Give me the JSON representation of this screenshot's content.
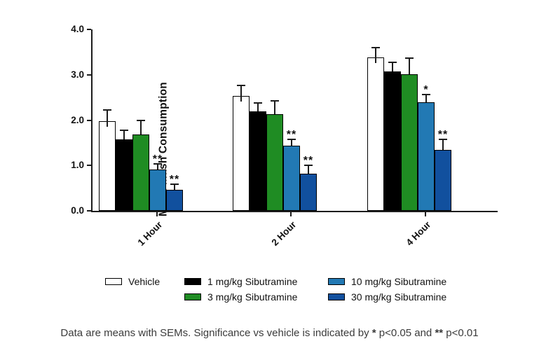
{
  "figure": {
    "caption": {
      "part1": "Data are means with SEMs. Significance vs vehicle is indicated by ",
      "star1": "*",
      "part2": " p<0.05 and ",
      "star2": "**",
      "part3": " p<0.01"
    }
  },
  "colors": {
    "axis": "#1c1c1c",
    "caption_text": "#3b3b3b",
    "vehicle": "#ffffff",
    "sibutramine_1mg": "#000000",
    "sibutramine_3mg": "#1f8c23",
    "sibutramine_10mg": "#2279b4",
    "sibutramine_30mg": "#11509e"
  },
  "chart_data": {
    "type": "bar",
    "title": "",
    "xlabel": "",
    "ylabel": "Mean Mash Consumption",
    "ylim": [
      0,
      4.0
    ],
    "yticks": [
      0,
      1,
      2,
      3,
      4
    ],
    "ytick_labels": [
      "0.0",
      "1.0",
      "2.0",
      "3.0",
      "4.0"
    ],
    "grid": false,
    "error_bars": "SEM",
    "legend_position": "bottom",
    "categories": [
      "1 Hour",
      "2 Hour",
      "4 Hour"
    ],
    "series": [
      {
        "name": "Vehicle",
        "color": "#ffffff",
        "values": [
          1.98,
          2.54,
          3.39
        ],
        "sems": [
          0.24,
          0.22,
          0.21
        ],
        "sig": [
          "",
          "",
          ""
        ]
      },
      {
        "name": "1 mg/kg Sibutramine",
        "color": "#000000",
        "values": [
          1.58,
          2.2,
          3.08
        ],
        "sems": [
          0.2,
          0.18,
          0.19
        ],
        "sig": [
          "",
          "",
          ""
        ]
      },
      {
        "name": "3 mg/kg Sibutramine",
        "color": "#1f8c23",
        "values": [
          1.68,
          2.13,
          3.01
        ],
        "sems": [
          0.31,
          0.3,
          0.35
        ],
        "sig": [
          "",
          "",
          ""
        ]
      },
      {
        "name": "10 mg/kg Sibutramine",
        "color": "#2279b4",
        "values": [
          0.91,
          1.43,
          2.39
        ],
        "sems": [
          0.13,
          0.14,
          0.17
        ],
        "sig": [
          "**",
          "**",
          "*"
        ]
      },
      {
        "name": "30 mg/kg Sibutramine",
        "color": "#11509e",
        "values": [
          0.46,
          0.82,
          1.35
        ],
        "sems": [
          0.12,
          0.18,
          0.22
        ],
        "sig": [
          "**",
          "**",
          "**"
        ]
      }
    ],
    "significance_note": {
      "*": "p<0.05",
      "**": "p<0.01"
    },
    "legend_columns": [
      [
        0
      ],
      [
        1,
        2
      ],
      [
        3,
        4
      ]
    ]
  }
}
